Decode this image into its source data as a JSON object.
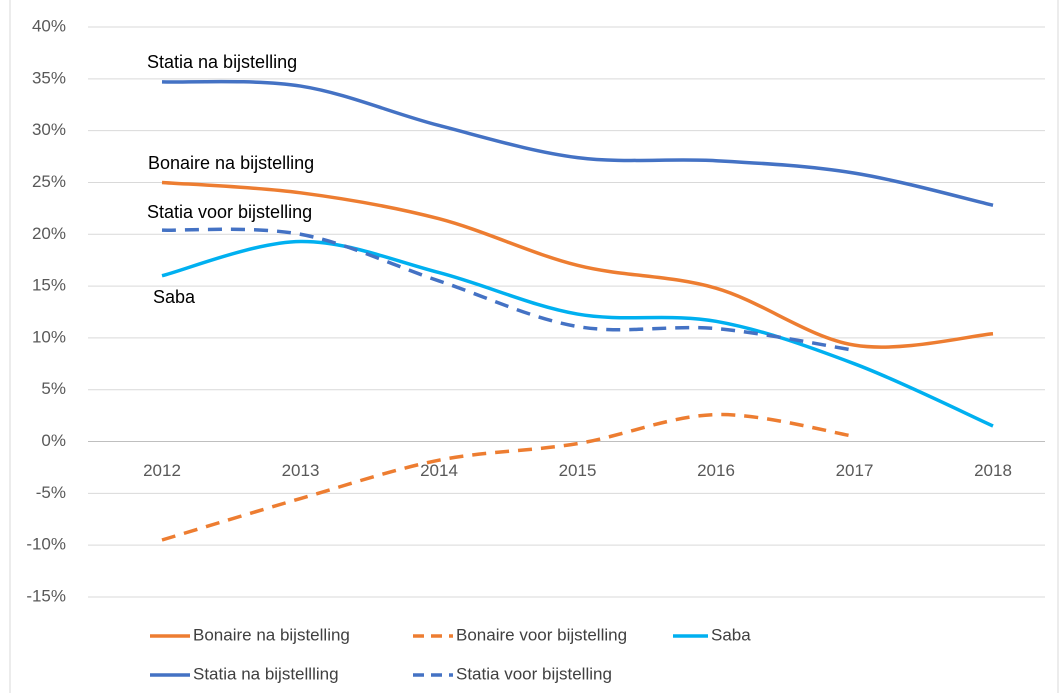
{
  "chart_data": {
    "type": "line",
    "categories": [
      "2012",
      "2013",
      "2014",
      "2015",
      "2016",
      "2017",
      "2018"
    ],
    "series": [
      {
        "name": "Bonaire na bijstelling",
        "color": "#ed7d31",
        "dashed": false,
        "values": [
          25,
          24,
          21.5,
          17,
          14.8,
          9.3,
          10.4
        ]
      },
      {
        "name": "Bonaire voor bijstelling",
        "color": "#ed7d31",
        "dashed": true,
        "values": [
          -9.5,
          -5.5,
          -1.8,
          -0.2,
          2.6,
          0.5,
          null
        ]
      },
      {
        "name": "Saba",
        "color": "#00b0f0",
        "dashed": false,
        "values": [
          16,
          19.3,
          16.3,
          12.3,
          11.6,
          7.5,
          1.5
        ]
      },
      {
        "name": "Statia na bijstellling",
        "color": "#4472c4",
        "dashed": false,
        "values": [
          34.7,
          34.3,
          30.5,
          27.4,
          27.1,
          25.9,
          22.8
        ]
      },
      {
        "name": "Statia voor bijstelling",
        "color": "#4472c4",
        "dashed": true,
        "values": [
          20.4,
          20,
          15.5,
          11.1,
          10.9,
          8.8,
          null
        ]
      }
    ],
    "annotations": [
      "Statia na bijstelling",
      "Bonaire na bijstelling",
      "Statia voor bijstelling",
      "Saba"
    ],
    "ylim": [
      -15,
      40
    ],
    "yticks": [
      {
        "value": -15,
        "label": "-15%"
      },
      {
        "value": -10,
        "label": "-10%"
      },
      {
        "value": -5,
        "label": "-5%"
      },
      {
        "value": 0,
        "label": "0%"
      },
      {
        "value": 5,
        "label": "5%"
      },
      {
        "value": 10,
        "label": "10%"
      },
      {
        "value": 15,
        "label": "15%"
      },
      {
        "value": 20,
        "label": "20%"
      },
      {
        "value": 25,
        "label": "25%"
      },
      {
        "value": 30,
        "label": "30%"
      },
      {
        "value": 35,
        "label": "35%"
      },
      {
        "value": 40,
        "label": "40%"
      }
    ],
    "grid": true,
    "smooth": true,
    "legend": "bottom"
  }
}
